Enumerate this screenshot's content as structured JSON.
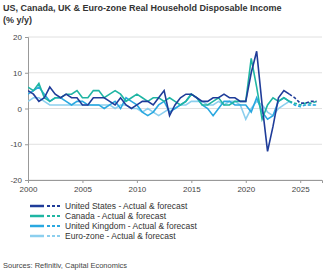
{
  "chart_data": {
    "type": "line",
    "title": "US, Canada, UK & Euro-zone Real Household Disposable Income",
    "subtitle": "(% y/y)",
    "source": "Sources: Refinitiv, Capital Economics",
    "x": [
      2000,
      2000.5,
      2001,
      2001.5,
      2002,
      2002.5,
      2003,
      2003.5,
      2004,
      2004.5,
      2005,
      2005.5,
      2006,
      2006.5,
      2007,
      2007.5,
      2008,
      2008.5,
      2009,
      2009.5,
      2010,
      2010.5,
      2011,
      2011.5,
      2012,
      2012.5,
      2013,
      2013.5,
      2014,
      2014.5,
      2015,
      2015.5,
      2016,
      2016.5,
      2017,
      2017.5,
      2018,
      2018.5,
      2019,
      2019.5,
      2020,
      2020.5,
      2021,
      2021.5,
      2022,
      2022.5,
      2023,
      2023.5,
      2024,
      2024.5,
      2025,
      2025.5,
      2026,
      2026.5
    ],
    "xlim": [
      2000,
      2027
    ],
    "xticks": [
      2000,
      2005,
      2010,
      2015,
      2020,
      2025
    ],
    "ylim": [
      -20,
      20
    ],
    "yticks": [
      -20,
      -10,
      0,
      10,
      20
    ],
    "grid": true,
    "legend": "bottom",
    "series": [
      {
        "name": "United States - Actual & forecast",
        "color": "#1f3c99",
        "values": [
          5,
          4,
          2,
          3,
          6,
          4,
          3,
          4,
          3,
          3,
          1,
          1,
          3,
          3,
          3,
          2,
          1,
          3,
          1,
          0,
          1,
          2,
          2,
          1,
          3,
          5,
          -2,
          1,
          3,
          4,
          4,
          3,
          2,
          2,
          3,
          3,
          4,
          3,
          3,
          2,
          2,
          10,
          16,
          1,
          -12,
          -5,
          3,
          5,
          4,
          null,
          null,
          null,
          null,
          null
        ],
        "forecast": [
          null,
          null,
          null,
          null,
          null,
          null,
          null,
          null,
          null,
          null,
          null,
          null,
          null,
          null,
          null,
          null,
          null,
          null,
          null,
          null,
          null,
          null,
          null,
          null,
          null,
          null,
          null,
          null,
          null,
          null,
          null,
          null,
          null,
          null,
          null,
          null,
          null,
          null,
          null,
          null,
          null,
          null,
          null,
          null,
          null,
          null,
          null,
          null,
          4,
          3,
          1.5,
          1.5,
          2,
          2
        ]
      },
      {
        "name": "Canada - Actual & forecast",
        "color": "#1fb5a3",
        "values": [
          6,
          5,
          7,
          3,
          2,
          3,
          3,
          4,
          4,
          5,
          3,
          3,
          5,
          5,
          3,
          4,
          5,
          4,
          2,
          3,
          4,
          3,
          2,
          3,
          3,
          2,
          3,
          2,
          1,
          2,
          4,
          3,
          1,
          1,
          2,
          3,
          1,
          1,
          2,
          2,
          2,
          14,
          6,
          -3,
          1,
          3,
          2,
          3,
          2,
          null,
          null,
          null,
          null,
          null
        ],
        "forecast": [
          null,
          null,
          null,
          null,
          null,
          null,
          null,
          null,
          null,
          null,
          null,
          null,
          null,
          null,
          null,
          null,
          null,
          null,
          null,
          null,
          null,
          null,
          null,
          null,
          null,
          null,
          null,
          null,
          null,
          null,
          null,
          null,
          null,
          null,
          null,
          null,
          null,
          null,
          null,
          null,
          null,
          null,
          null,
          null,
          null,
          null,
          null,
          null,
          2,
          1.5,
          1,
          1.5,
          1.5,
          2
        ]
      },
      {
        "name": "United Kingdom - Actual & forecast",
        "color": "#2aa8e0",
        "values": [
          4,
          5,
          6,
          4,
          2,
          3,
          3,
          2,
          1,
          2,
          2,
          1,
          1,
          1,
          0,
          1,
          2,
          0,
          3,
          2,
          1,
          -1,
          -2,
          -1,
          1,
          2,
          -1,
          0,
          1,
          2,
          4,
          3,
          1,
          0,
          -2,
          0,
          2,
          2,
          1,
          1,
          1,
          -1,
          3,
          -1,
          -3,
          -2,
          2,
          3,
          2,
          null,
          null,
          null,
          null,
          null
        ],
        "forecast": [
          null,
          null,
          null,
          null,
          null,
          null,
          null,
          null,
          null,
          null,
          null,
          null,
          null,
          null,
          null,
          null,
          null,
          null,
          null,
          null,
          null,
          null,
          null,
          null,
          null,
          null,
          null,
          null,
          null,
          null,
          null,
          null,
          null,
          null,
          null,
          null,
          null,
          null,
          null,
          null,
          null,
          null,
          null,
          null,
          null,
          null,
          null,
          null,
          2,
          1,
          0.5,
          1,
          1,
          1
        ]
      },
      {
        "name": "Euro-zone - Actual & forecast",
        "color": "#8ccfee",
        "values": [
          2,
          3,
          3,
          2,
          1,
          1,
          1,
          1,
          1,
          1,
          1,
          1,
          1,
          1,
          1,
          1,
          0,
          1,
          1,
          0,
          0,
          -1,
          0,
          -1,
          -2,
          -1,
          0,
          0,
          1,
          1,
          2,
          2,
          2,
          1,
          1,
          2,
          1,
          2,
          2,
          1,
          -3,
          0,
          2,
          1,
          -1,
          -2,
          0,
          1,
          2,
          null,
          null,
          null,
          null,
          null
        ],
        "forecast": [
          null,
          null,
          null,
          null,
          null,
          null,
          null,
          null,
          null,
          null,
          null,
          null,
          null,
          null,
          null,
          null,
          null,
          null,
          null,
          null,
          null,
          null,
          null,
          null,
          null,
          null,
          null,
          null,
          null,
          null,
          null,
          null,
          null,
          null,
          null,
          null,
          null,
          null,
          null,
          null,
          null,
          null,
          null,
          null,
          null,
          null,
          null,
          null,
          2,
          1,
          1,
          1,
          1,
          1
        ]
      }
    ]
  }
}
